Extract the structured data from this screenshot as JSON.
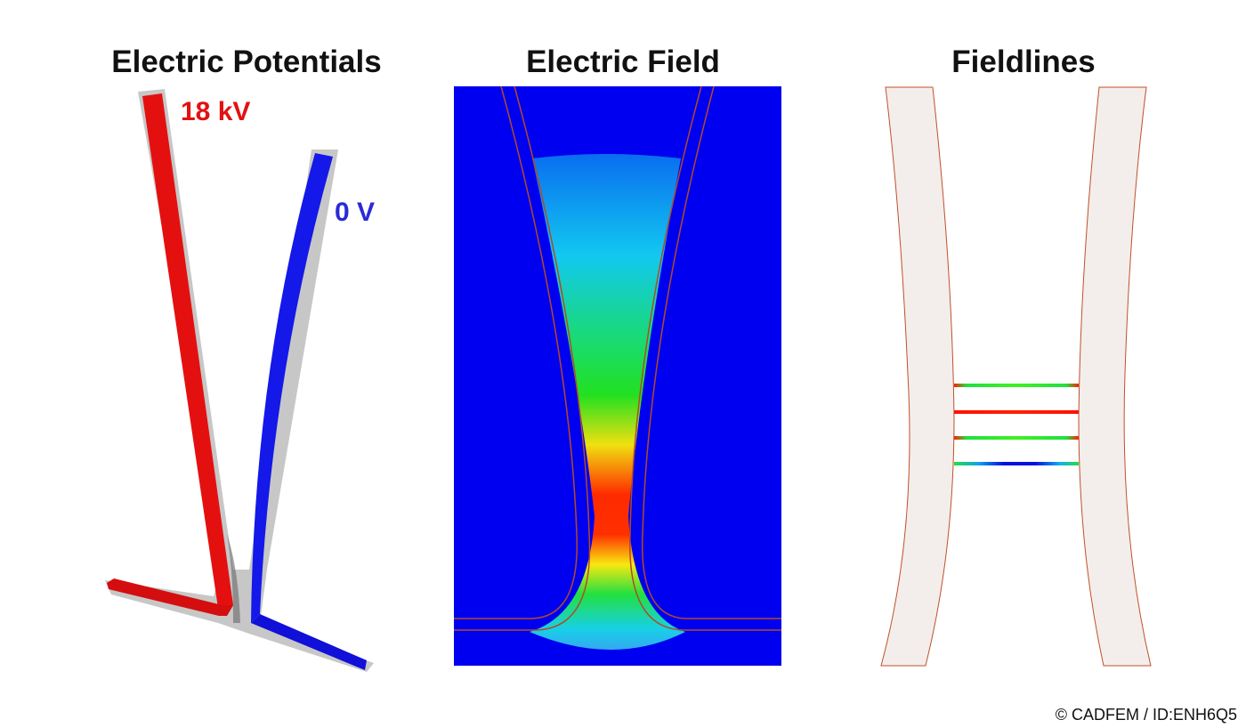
{
  "panels": [
    {
      "title": "Electric Potentials",
      "labels": [
        "18 kV",
        "0 V"
      ]
    },
    {
      "title": "Electric Field"
    },
    {
      "title": "Fieldlines"
    }
  ],
  "footer": {
    "credit": "© CADFEM / ID:ENH6Q5"
  }
}
